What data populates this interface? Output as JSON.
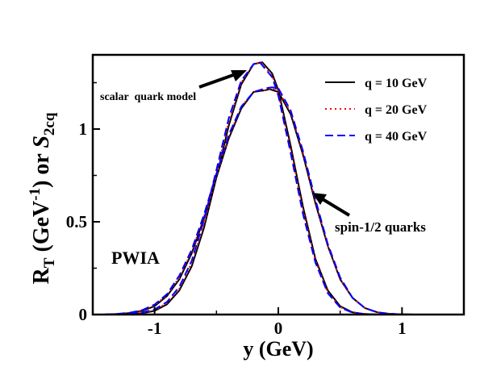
{
  "chart_data": {
    "type": "line",
    "title": "",
    "xlabel": "y (GeV)",
    "ylabel_parts": {
      "main": "R",
      "sub": "T",
      "open": " (GeV",
      "sup": "-1",
      "close": ") or ",
      "italic": "S",
      "italic_sub": "2cq"
    },
    "xlim": [
      -1.5,
      1.5
    ],
    "ylim": [
      0,
      1.4
    ],
    "x_ticks": [
      {
        "value": -1,
        "label": "-1"
      },
      {
        "value": 0,
        "label": "0"
      },
      {
        "value": 1,
        "label": "1"
      }
    ],
    "y_ticks": [
      {
        "value": 0,
        "label": "0"
      },
      {
        "value": 0.5,
        "label": "0.5"
      },
      {
        "value": 1,
        "label": "1"
      }
    ],
    "grid": false,
    "legend_placement": "top-right",
    "legend": [
      {
        "label": "q = 10 GeV",
        "color": "#000000",
        "dash": "solid"
      },
      {
        "label": "q = 20 GeV",
        "color": "#ff0000",
        "dash": "dotted"
      },
      {
        "label": "q = 40 GeV",
        "color": "#0000ff",
        "dash": "dashed"
      }
    ],
    "annotations": [
      {
        "text": "scalar  quark model",
        "x": -0.72,
        "y": 1.2,
        "arrow_to": [
          -0.13,
          1.36
        ]
      },
      {
        "text": "spin-1/2 quarks",
        "x": 0.47,
        "y": 0.48,
        "arrow_to": [
          0.28,
          0.65
        ]
      },
      {
        "text": "PWIA",
        "x": -1.4,
        "y": 0.27
      }
    ],
    "curve_families": [
      {
        "name": "scalar quark model",
        "peak_x": -0.13,
        "peak_y": 1.36,
        "width_left": 0.345,
        "width_right": 0.285
      },
      {
        "name": "spin-1/2 quarks",
        "peak_x": -0.07,
        "peak_y": 1.215,
        "width_left": 0.37,
        "width_right": 0.33
      }
    ],
    "series": [
      {
        "name": "q = 10 GeV",
        "color": "#000000",
        "curves": {
          "scalar": {
            "x": [
              -1.4,
              -1.3,
              -1.2,
              -1.1,
              -1.0,
              -0.9,
              -0.8,
              -0.7,
              -0.6,
              -0.5,
              -0.4,
              -0.3,
              -0.2,
              -0.13,
              -0.05,
              0.0,
              0.1,
              0.2,
              0.3,
              0.4,
              0.5,
              0.6,
              0.7,
              0.8,
              0.9,
              1.0,
              1.1,
              1.2,
              1.3,
              1.4,
              1.5
            ],
            "y": [
              0.0,
              0.0,
              0.002,
              0.007,
              0.02,
              0.055,
              0.13,
              0.26,
              0.47,
              0.74,
              1.02,
              1.24,
              1.35,
              1.36,
              1.3,
              1.21,
              0.91,
              0.58,
              0.3,
              0.13,
              0.045,
              0.012,
              0.003,
              0.0,
              0.0,
              0.0,
              0.0,
              0.0,
              0.0,
              0.0,
              0.0
            ]
          },
          "spin": {
            "x": [
              -1.4,
              -1.3,
              -1.2,
              -1.1,
              -1.0,
              -0.9,
              -0.8,
              -0.7,
              -0.6,
              -0.5,
              -0.4,
              -0.3,
              -0.2,
              -0.1,
              -0.07,
              0.0,
              0.1,
              0.2,
              0.3,
              0.4,
              0.5,
              0.6,
              0.7,
              0.8,
              0.9,
              1.0,
              1.1,
              1.2,
              1.3,
              1.4,
              1.5
            ],
            "y": [
              0.0,
              0.003,
              0.008,
              0.02,
              0.045,
              0.1,
              0.19,
              0.33,
              0.52,
              0.74,
              0.95,
              1.11,
              1.2,
              1.21,
              1.215,
              1.2,
              1.08,
              0.86,
              0.6,
              0.37,
              0.19,
              0.09,
              0.035,
              0.012,
              0.004,
              0.001,
              0.0,
              0.0,
              0.0,
              0.0,
              0.0
            ]
          }
        }
      },
      {
        "name": "q = 20 GeV",
        "color": "#ff0000",
        "curves": {
          "scalar": {
            "x": [
              -1.4,
              -1.3,
              -1.2,
              -1.1,
              -1.0,
              -0.9,
              -0.8,
              -0.7,
              -0.6,
              -0.5,
              -0.4,
              -0.3,
              -0.2,
              -0.14,
              -0.05,
              0.0,
              0.1,
              0.2,
              0.3,
              0.4,
              0.5,
              0.6,
              0.7,
              0.8,
              0.9,
              1.0,
              1.1,
              1.2,
              1.3,
              1.4,
              1.5
            ],
            "y": [
              0.0,
              0.001,
              0.003,
              0.009,
              0.024,
              0.062,
              0.14,
              0.28,
              0.49,
              0.76,
              1.04,
              1.25,
              1.35,
              1.36,
              1.29,
              1.19,
              0.89,
              0.56,
              0.29,
              0.12,
              0.04,
              0.011,
              0.003,
              0.0,
              0.0,
              0.0,
              0.0,
              0.0,
              0.0,
              0.0,
              0.0
            ]
          },
          "spin": {
            "x": [
              -1.4,
              -1.3,
              -1.2,
              -1.1,
              -1.0,
              -0.9,
              -0.8,
              -0.7,
              -0.6,
              -0.5,
              -0.4,
              -0.3,
              -0.2,
              -0.1,
              -0.06,
              0.0,
              0.1,
              0.2,
              0.3,
              0.4,
              0.5,
              0.6,
              0.7,
              0.8,
              0.9,
              1.0,
              1.1,
              1.2,
              1.3,
              1.4,
              1.5
            ],
            "y": [
              0.001,
              0.003,
              0.009,
              0.022,
              0.05,
              0.105,
              0.2,
              0.34,
              0.53,
              0.75,
              0.96,
              1.12,
              1.2,
              1.21,
              1.22,
              1.21,
              1.09,
              0.87,
              0.61,
              0.37,
              0.19,
              0.09,
              0.035,
              0.012,
              0.004,
              0.001,
              0.0,
              0.0,
              0.0,
              0.0,
              0.0
            ]
          }
        }
      },
      {
        "name": "q = 40 GeV",
        "color": "#0000ff",
        "curves": {
          "scalar": {
            "x": [
              -1.4,
              -1.3,
              -1.2,
              -1.1,
              -1.0,
              -0.9,
              -0.8,
              -0.7,
              -0.6,
              -0.5,
              -0.4,
              -0.3,
              -0.2,
              -0.15,
              -0.05,
              0.0,
              0.1,
              0.2,
              0.3,
              0.4,
              0.5,
              0.6,
              0.7,
              0.8,
              0.9,
              1.0,
              1.1,
              1.2,
              1.3,
              1.4,
              1.5
            ],
            "y": [
              0.0,
              0.001,
              0.004,
              0.011,
              0.028,
              0.068,
              0.15,
              0.29,
              0.51,
              0.78,
              1.06,
              1.26,
              1.35,
              1.36,
              1.28,
              1.18,
              0.87,
              0.54,
              0.28,
              0.115,
              0.038,
              0.01,
              0.002,
              0.0,
              0.0,
              0.0,
              0.0,
              0.0,
              0.0,
              0.0,
              0.0
            ]
          },
          "spin": {
            "x": [
              -1.4,
              -1.3,
              -1.2,
              -1.1,
              -1.0,
              -0.9,
              -0.8,
              -0.7,
              -0.6,
              -0.5,
              -0.4,
              -0.3,
              -0.2,
              -0.1,
              -0.05,
              0.0,
              0.1,
              0.2,
              0.3,
              0.4,
              0.5,
              0.6,
              0.7,
              0.8,
              0.9,
              1.0,
              1.1,
              1.2,
              1.3,
              1.4,
              1.5
            ],
            "y": [
              0.001,
              0.004,
              0.01,
              0.024,
              0.054,
              0.11,
              0.21,
              0.35,
              0.54,
              0.76,
              0.97,
              1.12,
              1.2,
              1.22,
              1.225,
              1.22,
              1.1,
              0.88,
              0.62,
              0.38,
              0.2,
              0.09,
              0.035,
              0.012,
              0.004,
              0.001,
              0.0,
              0.0,
              0.0,
              0.0,
              0.0
            ]
          }
        }
      }
    ]
  }
}
